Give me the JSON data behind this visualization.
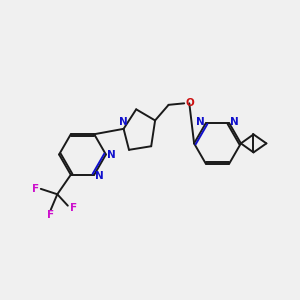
{
  "bg_color": "#f0f0f0",
  "bond_color": "#1a1a1a",
  "N_color": "#1010cc",
  "O_color": "#cc1010",
  "F_color": "#cc10cc",
  "bond_lw": 1.4,
  "figsize": [
    3.0,
    3.0
  ],
  "dpi": 100,
  "xlim": [
    0,
    10
  ],
  "ylim": [
    0,
    10
  ],
  "font_size": 7.5
}
